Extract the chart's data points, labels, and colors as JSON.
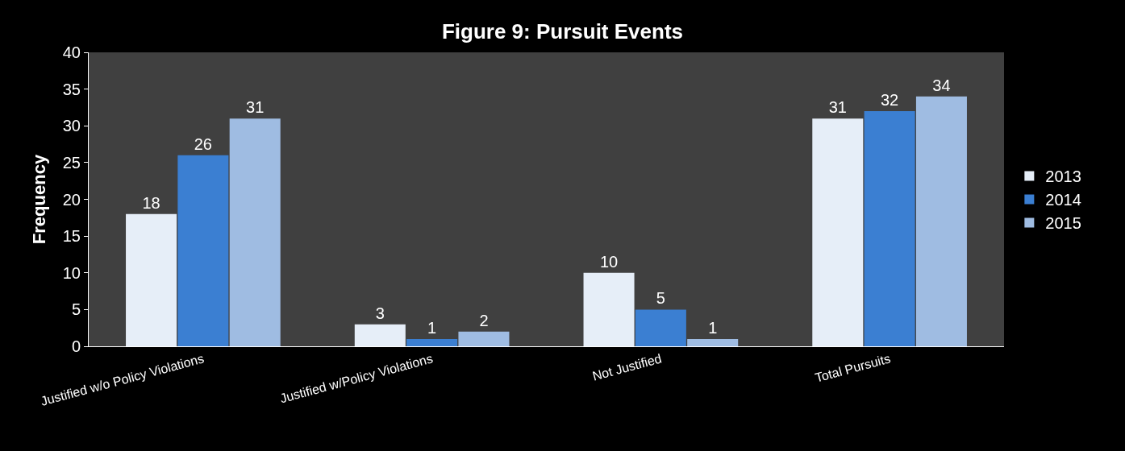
{
  "chart_data": {
    "type": "bar",
    "title": "Figure 9: Pursuit Events",
    "ylabel": "Frequency",
    "categories": [
      "Justified w/o Policy Violations",
      "Justified w/Policy Violations",
      "Not Justified",
      "Total Pursuits"
    ],
    "series": [
      {
        "name": "2013",
        "color": "#e6eef8",
        "values": [
          18,
          3,
          10,
          31
        ]
      },
      {
        "name": "2014",
        "color": "#3b7fd2",
        "values": [
          26,
          1,
          5,
          32
        ]
      },
      {
        "name": "2015",
        "color": "#9fbce2",
        "values": [
          31,
          2,
          1,
          34
        ]
      }
    ],
    "ylim": [
      0,
      40
    ],
    "yticks": [
      0,
      5,
      10,
      15,
      20,
      25,
      30,
      35,
      40
    ],
    "grid": false,
    "legend": "right",
    "data_labels": true
  }
}
